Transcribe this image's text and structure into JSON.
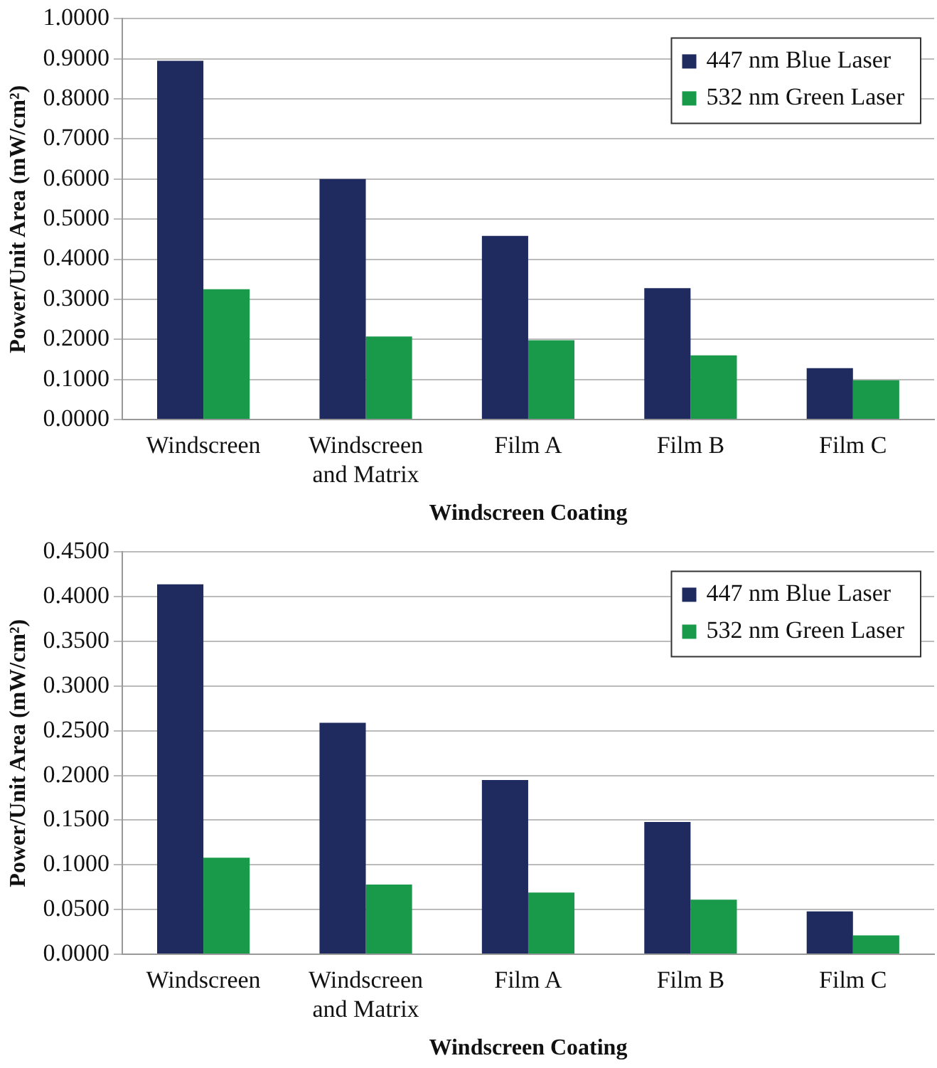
{
  "chart_data": [
    {
      "type": "bar",
      "xlabel": "Windscreen Coating",
      "ylabel": "Power/Unit Area (mW/cm²)",
      "categories": [
        "Windscreen",
        "Windscreen and Matrix",
        "Film A",
        "Film B",
        "Film C"
      ],
      "series": [
        {
          "name": "447 nm Blue Laser",
          "color": "#1f2a5e",
          "values": [
            0.895,
            0.6,
            0.458,
            0.328,
            0.128
          ]
        },
        {
          "name": "532 nm Green Laser",
          "color": "#199a4a",
          "values": [
            0.325,
            0.207,
            0.198,
            0.16,
            0.098
          ]
        }
      ],
      "ylim": [
        0,
        1
      ],
      "yticks": [
        {
          "value": 0,
          "label": "0.0000"
        },
        {
          "value": 0.1,
          "label": "0.1000"
        },
        {
          "value": 0.2,
          "label": "0.2000"
        },
        {
          "value": 0.3,
          "label": "0.3000"
        },
        {
          "value": 0.4,
          "label": "0.4000"
        },
        {
          "value": 0.5,
          "label": "0.5000"
        },
        {
          "value": 0.6,
          "label": "0.6000"
        },
        {
          "value": 0.7,
          "label": "0.7000"
        },
        {
          "value": 0.8,
          "label": "0.8000"
        },
        {
          "value": 0.9,
          "label": "0.9000"
        },
        {
          "value": 1,
          "label": "1.0000"
        }
      ],
      "grid": "y",
      "legend": "top right"
    },
    {
      "type": "bar",
      "xlabel": "Windscreen Coating",
      "ylabel": "Power/Unit Area (mW/cm²)",
      "categories": [
        "Windscreen",
        "Windscreen and Matrix",
        "Film A",
        "Film B",
        "Film C"
      ],
      "series": [
        {
          "name": "447 nm Blue Laser",
          "color": "#1f2a5e",
          "values": [
            0.414,
            0.259,
            0.195,
            0.148,
            0.048
          ]
        },
        {
          "name": "532 nm Green Laser",
          "color": "#199a4a",
          "values": [
            0.108,
            0.078,
            0.069,
            0.061,
            0.021
          ]
        }
      ],
      "ylim": [
        0,
        0.45
      ],
      "yticks": [
        {
          "value": 0,
          "label": "0.0000"
        },
        {
          "value": 0.05,
          "label": "0.0500"
        },
        {
          "value": 0.1,
          "label": "0.1000"
        },
        {
          "value": 0.15,
          "label": "0.1500"
        },
        {
          "value": 0.2,
          "label": "0.2000"
        },
        {
          "value": 0.25,
          "label": "0.2500"
        },
        {
          "value": 0.3,
          "label": "0.3000"
        },
        {
          "value": 0.35,
          "label": "0.3500"
        },
        {
          "value": 0.4,
          "label": "0.4000"
        },
        {
          "value": 0.45,
          "label": "0.4500"
        }
      ],
      "grid": "y",
      "legend": "top right"
    }
  ]
}
